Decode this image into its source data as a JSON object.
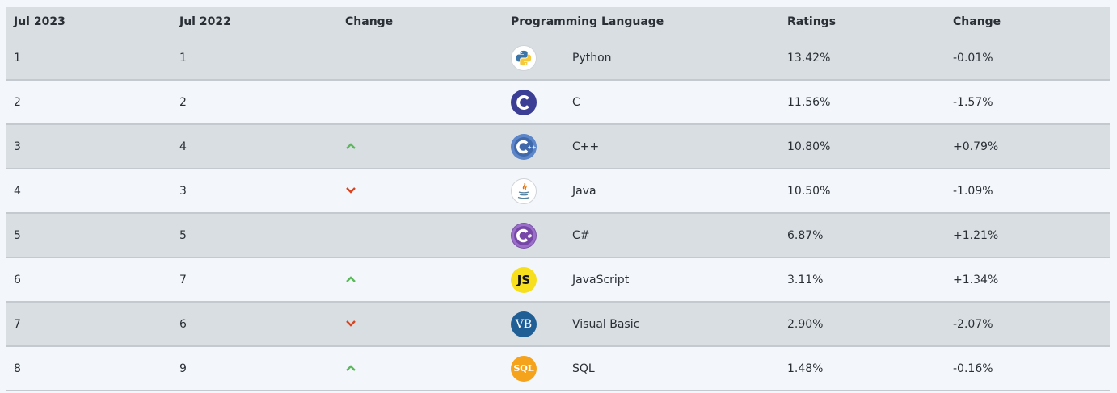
{
  "header": {
    "col1": "Jul 2023",
    "col2": "Jul 2022",
    "col3": "Change",
    "col4": "Programming Language",
    "col5": "Ratings",
    "col6": "Change"
  },
  "colors": {
    "up": "#5cb85c",
    "down": "#d9431e"
  },
  "rows": [
    {
      "rank2023": "1",
      "rank2022": "1",
      "trend": "none",
      "lang": "Python",
      "logo": "python-icon",
      "rating": "13.42%",
      "change": "-0.01%"
    },
    {
      "rank2023": "2",
      "rank2022": "2",
      "trend": "none",
      "lang": "C",
      "logo": "c-icon",
      "rating": "11.56%",
      "change": "-1.57%"
    },
    {
      "rank2023": "3",
      "rank2022": "4",
      "trend": "up",
      "lang": "C++",
      "logo": "cpp-icon",
      "rating": "10.80%",
      "change": "+0.79%"
    },
    {
      "rank2023": "4",
      "rank2022": "3",
      "trend": "down",
      "lang": "Java",
      "logo": "java-icon",
      "rating": "10.50%",
      "change": "-1.09%"
    },
    {
      "rank2023": "5",
      "rank2022": "5",
      "trend": "none",
      "lang": "C#",
      "logo": "csharp-icon",
      "rating": "6.87%",
      "change": "+1.21%"
    },
    {
      "rank2023": "6",
      "rank2022": "7",
      "trend": "up",
      "lang": "JavaScript",
      "logo": "javascript-icon",
      "rating": "3.11%",
      "change": "+1.34%",
      "logo_text": "JS"
    },
    {
      "rank2023": "7",
      "rank2022": "6",
      "trend": "down",
      "lang": "Visual Basic",
      "logo": "visual-basic-icon",
      "rating": "2.90%",
      "change": "-2.07%",
      "logo_text": "VB"
    },
    {
      "rank2023": "8",
      "rank2022": "9",
      "trend": "up",
      "lang": "SQL",
      "logo": "sql-icon",
      "rating": "1.48%",
      "change": "-0.16%",
      "logo_text": "SQL"
    }
  ]
}
